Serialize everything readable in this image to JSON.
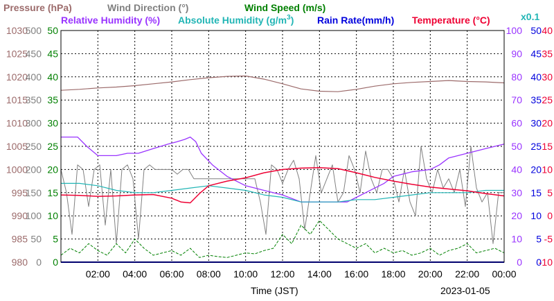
{
  "colors": {
    "pressure": "#9c6b6b",
    "wind_direction": "#808080",
    "wind_speed": "#008000",
    "humidity": "#9933ff",
    "abs_humidity": "#21b5b5",
    "rain": "#0000dd",
    "temperature": "#ee0033",
    "grid": "#000000",
    "background": "#ffffff"
  },
  "legend": {
    "pressure": "Pressure (hPa)",
    "wind_direction": "Wind Direction (°)",
    "wind_speed": "Wind Speed (m/s)",
    "humidity": "Relative Humidity (%)",
    "abs_humidity_main": "Absolute Humidity (g/m",
    "abs_humidity_sup": "3",
    "abs_humidity_close": ")",
    "rain": "Rain Rate(mm/h)",
    "temperature": "Temperature (°C)",
    "multiplier": "x0.1"
  },
  "footer": {
    "xlabel": "Time (JST)",
    "date": "2023-01-05"
  },
  "chart_data": {
    "type": "line",
    "xlabel": "Time (JST)",
    "xlim": [
      0,
      24
    ],
    "x_ticks": [
      "02:00",
      "04:00",
      "06:00",
      "08:00",
      "10:00",
      "12:00",
      "14:00",
      "16:00",
      "18:00",
      "20:00",
      "22:00",
      "00:00"
    ],
    "axes": {
      "pressure": {
        "ticks": [
          "1030",
          "1025",
          "1020",
          "1015",
          "1010",
          "1005",
          "1000",
          "995",
          "990",
          "985",
          "980"
        ],
        "range": [
          980,
          1030
        ]
      },
      "wind_direction": {
        "ticks": [
          "500",
          "450",
          "400",
          "350",
          "300",
          "250",
          "200",
          "150",
          "100",
          "50",
          "0"
        ],
        "range": [
          0,
          500
        ]
      },
      "wind_speed": {
        "ticks": [
          "50",
          "45",
          "40",
          "35",
          "30",
          "25",
          "20",
          "15",
          "10",
          "5",
          "0"
        ],
        "range": [
          0,
          50
        ]
      },
      "humidity": {
        "ticks": [
          "100",
          "90",
          "80",
          "70",
          "60",
          "50",
          "40",
          "30",
          "20",
          "10",
          "0"
        ],
        "range": [
          0,
          100
        ]
      },
      "rain": {
        "ticks": [
          "50",
          "45",
          "40",
          "35",
          "30",
          "25",
          "20",
          "15",
          "10",
          "5",
          "0"
        ],
        "range": [
          0,
          50
        ]
      },
      "temperature": {
        "ticks": [
          "40",
          "35",
          "30",
          "25",
          "20",
          "15",
          "10",
          "5",
          "0",
          "-5",
          "-10"
        ],
        "range": [
          -10,
          40
        ]
      }
    },
    "series": [
      {
        "name": "Pressure (hPa)",
        "axis": "pressure",
        "x": [
          0,
          1,
          2,
          3,
          4,
          5,
          6,
          7,
          8,
          9,
          10,
          11,
          12,
          13,
          14,
          15,
          16,
          17,
          18,
          19,
          20,
          21,
          22,
          23,
          24
        ],
        "y": [
          1017.1,
          1017.3,
          1017.6,
          1017.8,
          1018.1,
          1018.5,
          1018.9,
          1019.4,
          1019.8,
          1020.1,
          1020.2,
          1019.5,
          1018.5,
          1017.4,
          1016.9,
          1016.8,
          1017.3,
          1018.0,
          1018.5,
          1018.8,
          1019.0,
          1019.2,
          1019.0,
          1018.9,
          1018.7
        ]
      },
      {
        "name": "Wind Direction (°)",
        "axis": "wind_direction",
        "x": [
          0,
          0.3,
          0.6,
          0.9,
          1.2,
          1.5,
          1.8,
          2.1,
          2.4,
          2.7,
          3.0,
          3.3,
          3.6,
          3.9,
          4.2,
          4.5,
          4.8,
          5.1,
          5.4,
          5.7,
          6.0,
          6.3,
          6.6,
          6.9,
          7.2,
          7.5,
          7.8,
          8.1,
          8.4,
          8.7,
          9.0,
          9.3,
          9.6,
          9.9,
          10.2,
          10.5,
          10.8,
          11.1,
          11.4,
          11.7,
          12.0,
          12.3,
          12.6,
          12.9,
          13.2,
          13.5,
          13.8,
          14.1,
          14.4,
          14.7,
          15.0,
          15.3,
          15.6,
          15.9,
          16.2,
          16.5,
          16.8,
          17.1,
          17.4,
          17.7,
          18.0,
          18.3,
          18.6,
          18.9,
          19.2,
          19.5,
          19.8,
          20.1,
          20.4,
          20.7,
          21.0,
          21.3,
          21.6,
          21.9,
          22.2,
          22.5,
          22.8,
          23.1,
          23.4,
          23.7,
          24.0
        ],
        "y": [
          200,
          150,
          60,
          210,
          200,
          120,
          200,
          210,
          80,
          200,
          40,
          200,
          210,
          180,
          50,
          200,
          210,
          200,
          200,
          200,
          200,
          190,
          200,
          200,
          180,
          180,
          180,
          180,
          180,
          180,
          180,
          180,
          180,
          180,
          180,
          180,
          130,
          60,
          210,
          200,
          170,
          200,
          220,
          180,
          70,
          150,
          230,
          150,
          180,
          210,
          130,
          150,
          230,
          200,
          150,
          240,
          180,
          150,
          200,
          200,
          180,
          130,
          200,
          130,
          100,
          250,
          180,
          150,
          200,
          160,
          180,
          150,
          200,
          120,
          250,
          160,
          130,
          150,
          40,
          150,
          150
        ]
      },
      {
        "name": "Wind Speed (m/s)",
        "axis": "wind_speed",
        "x": [
          0,
          0.5,
          1,
          1.5,
          2,
          2.5,
          3,
          3.5,
          4,
          4.5,
          5,
          5.5,
          6,
          6.5,
          7,
          7.5,
          8,
          8.5,
          9,
          9.5,
          10,
          10.5,
          11,
          11.5,
          12,
          12.5,
          13,
          13.5,
          14,
          14.5,
          15,
          15.5,
          16,
          16.5,
          17,
          17.5,
          18,
          18.5,
          19,
          19.5,
          20,
          20.5,
          21,
          21.5,
          22,
          22.5,
          23,
          23.5,
          24
        ],
        "y": [
          1.5,
          3,
          2,
          4,
          2.5,
          1.5,
          4,
          2,
          5,
          3,
          1.5,
          2,
          2.5,
          1.5,
          3,
          1,
          1.5,
          1.2,
          1,
          1.5,
          2,
          1.8,
          2.5,
          3,
          6,
          4,
          8,
          6,
          9,
          7,
          5,
          4,
          3,
          4,
          2,
          3,
          2,
          2.5,
          1.5,
          2,
          3,
          1.5,
          2.5,
          3,
          4,
          2,
          2.5,
          3,
          2
        ]
      },
      {
        "name": "Relative Humidity (%)",
        "axis": "humidity",
        "x": [
          0,
          0.3,
          0.9,
          1.4,
          2,
          3,
          3.6,
          4.2,
          5,
          5.8,
          6.3,
          6.7,
          7,
          7.3,
          7.6,
          8.2,
          9,
          10,
          11,
          12,
          13,
          14,
          15,
          15.5,
          16,
          16.5,
          17,
          17.5,
          18,
          19,
          20,
          20.5,
          21,
          22,
          23,
          24
        ],
        "y": [
          54,
          54,
          54,
          50,
          46,
          46,
          47,
          47,
          49,
          51,
          52,
          53,
          54,
          52,
          47,
          42,
          37,
          33,
          31,
          29,
          26,
          26,
          26,
          26,
          28,
          30,
          32,
          34,
          37,
          39,
          40,
          42,
          45,
          47,
          49,
          51
        ]
      },
      {
        "name": "Absolute Humidity (g/m3)",
        "axis": "abs_humidity",
        "x": [
          0,
          1,
          2,
          3,
          4,
          5,
          6,
          7,
          8,
          9,
          10,
          11,
          12,
          13,
          14,
          15,
          16,
          17,
          18,
          19,
          20,
          21,
          22,
          23,
          24
        ],
        "y": [
          34,
          34,
          33,
          31,
          30,
          30,
          31,
          32,
          33,
          32,
          31,
          29,
          28,
          26,
          26,
          26,
          27,
          27,
          28,
          29,
          30,
          30,
          30,
          31,
          31
        ]
      },
      {
        "name": "Rain Rate(mm/h)",
        "axis": "rain",
        "x": [
          0,
          24
        ],
        "y": [
          0,
          0
        ]
      },
      {
        "name": "Temperature (°C)",
        "axis": "temperature",
        "x": [
          0,
          1,
          2,
          3,
          4,
          5,
          6,
          6.5,
          7,
          7.5,
          8,
          9,
          10,
          11,
          12,
          13,
          14,
          15,
          16,
          17,
          18,
          19,
          20,
          21,
          22,
          23,
          24
        ],
        "y": [
          4.5,
          4.4,
          4.2,
          4.3,
          4.5,
          4.6,
          3.8,
          3.0,
          2.8,
          4.8,
          6.5,
          7.5,
          8.2,
          9.3,
          10.0,
          10.3,
          10.4,
          10.2,
          9.3,
          8.3,
          7.5,
          6.8,
          6.2,
          5.8,
          5.4,
          4.8,
          4.3
        ]
      }
    ]
  }
}
